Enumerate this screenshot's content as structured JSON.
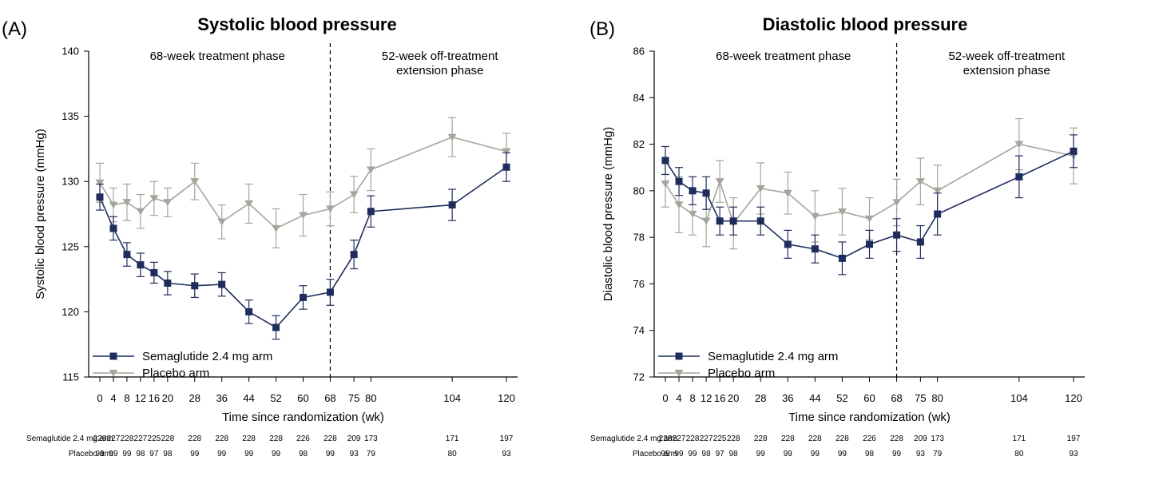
{
  "colors": {
    "semaglutide": "#1f2d5c",
    "placebo": "#a8a49c",
    "axis": "#000000"
  },
  "legend": [
    {
      "name": "Semaglutide 2.4 mg arm",
      "marker": "square",
      "color": "#1f2d5c"
    },
    {
      "name": "Placebo arm",
      "marker": "triangle-down",
      "color": "#a8a49c"
    }
  ],
  "risk_table": {
    "x": [
      0,
      4,
      8,
      12,
      16,
      20,
      28,
      36,
      44,
      52,
      60,
      68,
      75,
      80,
      104,
      120
    ],
    "rows": [
      {
        "label": "Semaglutide 2.4 mg arm",
        "values": [
          "228",
          "227",
          "228",
          "227",
          "225",
          "228",
          "228",
          "228",
          "228",
          "228",
          "226",
          "228",
          "209",
          "173",
          "171",
          "197"
        ]
      },
      {
        "label": "Placebo arm",
        "values": [
          "99",
          "99",
          "99",
          "98",
          "97",
          "98",
          "99",
          "99",
          "99",
          "99",
          "98",
          "99",
          "93",
          "79",
          "80",
          "93"
        ]
      }
    ]
  },
  "chart_data": [
    {
      "type": "line",
      "panel_label": "(A)",
      "title": "Systolic blood pressure",
      "xlabel": "Time since randomization (wk)",
      "ylabel": "Systolic blood pressure (mmHg)",
      "ylim": [
        115,
        140
      ],
      "yticks": [
        115,
        120,
        125,
        130,
        135,
        140
      ],
      "xticks": [
        0,
        4,
        8,
        12,
        16,
        20,
        28,
        36,
        44,
        52,
        60,
        68,
        75,
        80,
        104,
        120
      ],
      "xlim": [
        -2,
        122
      ],
      "divider_x": 68,
      "phases": [
        {
          "lines": [
            "68-week treatment phase"
          ]
        },
        {
          "lines": [
            "52-week off-treatment",
            "extension phase"
          ]
        }
      ],
      "legend_position": "bottom-left",
      "grid": false,
      "series": [
        {
          "name": "Semaglutide 2.4 mg arm",
          "x": [
            0,
            4,
            8,
            12,
            16,
            20,
            28,
            36,
            44,
            52,
            60,
            68,
            75,
            80,
            104,
            120
          ],
          "y": [
            128.8,
            126.4,
            124.4,
            123.6,
            123.0,
            122.2,
            122.0,
            122.1,
            120.0,
            118.8,
            121.1,
            121.5,
            124.4,
            127.7,
            128.2,
            131.1
          ],
          "err": [
            1.0,
            0.9,
            0.9,
            0.9,
            0.8,
            0.9,
            0.9,
            0.9,
            0.9,
            0.9,
            0.9,
            1.0,
            1.1,
            1.2,
            1.2,
            1.1
          ]
        },
        {
          "name": "Placebo arm",
          "x": [
            0,
            4,
            8,
            12,
            16,
            20,
            28,
            36,
            44,
            52,
            60,
            68,
            75,
            80,
            104,
            120
          ],
          "y": [
            129.9,
            128.2,
            128.4,
            127.7,
            128.7,
            128.4,
            130.0,
            126.9,
            128.3,
            126.4,
            127.4,
            127.9,
            129.0,
            130.9,
            133.4,
            132.3
          ],
          "err": [
            1.5,
            1.3,
            1.4,
            1.3,
            1.3,
            1.1,
            1.4,
            1.3,
            1.5,
            1.5,
            1.6,
            1.3,
            1.4,
            1.6,
            1.5,
            1.4
          ]
        }
      ]
    },
    {
      "type": "line",
      "panel_label": "(B)",
      "title": "Diastolic blood pressure",
      "xlabel": "Time since randomization (wk)",
      "ylabel": "Diastolic blood pressure (mmHg)",
      "ylim": [
        72,
        86
      ],
      "yticks": [
        72,
        74,
        76,
        78,
        80,
        82,
        84,
        86
      ],
      "xticks": [
        0,
        4,
        8,
        12,
        16,
        20,
        28,
        36,
        44,
        52,
        60,
        68,
        75,
        80,
        104,
        120
      ],
      "xlim": [
        -2,
        122
      ],
      "divider_x": 68,
      "phases": [
        {
          "lines": [
            "68-week treatment phase"
          ]
        },
        {
          "lines": [
            "52-week off-treatment",
            "extension phase"
          ]
        }
      ],
      "legend_position": "bottom-left",
      "grid": false,
      "series": [
        {
          "name": "Semaglutide 2.4 mg arm",
          "x": [
            0,
            4,
            8,
            12,
            16,
            20,
            28,
            36,
            44,
            52,
            60,
            68,
            75,
            80,
            104,
            120
          ],
          "y": [
            81.3,
            80.4,
            80.0,
            79.9,
            78.7,
            78.7,
            78.7,
            77.7,
            77.5,
            77.1,
            77.7,
            78.1,
            77.8,
            79.0,
            80.6,
            81.7
          ],
          "err": [
            0.6,
            0.6,
            0.6,
            0.7,
            0.6,
            0.6,
            0.6,
            0.6,
            0.6,
            0.7,
            0.6,
            0.7,
            0.7,
            0.9,
            0.9,
            0.7
          ]
        },
        {
          "name": "Placebo arm",
          "x": [
            0,
            4,
            8,
            12,
            16,
            20,
            28,
            36,
            44,
            52,
            60,
            68,
            75,
            80,
            104,
            120
          ],
          "y": [
            80.3,
            79.4,
            79.0,
            78.7,
            80.4,
            78.6,
            80.1,
            79.9,
            78.9,
            79.1,
            78.8,
            79.5,
            80.4,
            80.0,
            82.0,
            81.5
          ],
          "err": [
            1.0,
            1.2,
            0.9,
            1.1,
            0.9,
            1.1,
            1.1,
            0.9,
            1.1,
            1.0,
            0.9,
            1.0,
            1.0,
            1.1,
            1.1,
            1.2
          ]
        }
      ]
    }
  ]
}
